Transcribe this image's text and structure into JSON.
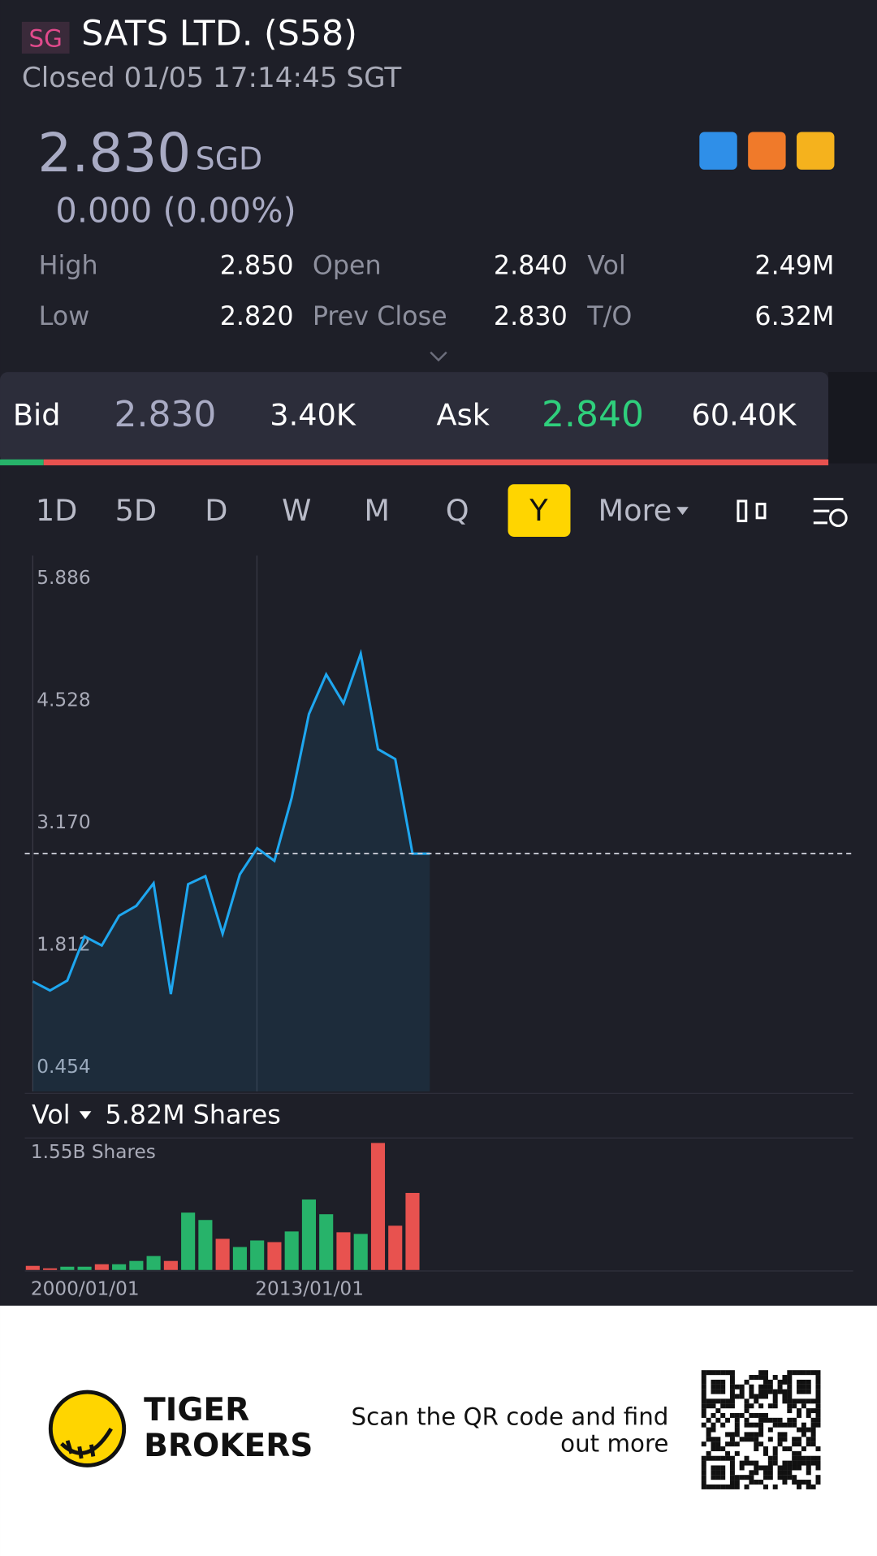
{
  "header": {
    "market": "SG",
    "title": "SATS LTD. (S58)",
    "status": "Closed 01/05 17:14:45 SGT"
  },
  "quote": {
    "price": "2.830",
    "currency": "SGD",
    "change": "0.000 (0.00%)"
  },
  "stats": [
    [
      "High",
      "2.850",
      "Open",
      "2.840",
      "Vol",
      "2.49M"
    ],
    [
      "Low",
      "2.820",
      "Prev Close",
      "2.830",
      "T/O",
      "6.32M"
    ]
  ],
  "order_book": [
    "Bid",
    "2.830",
    "3.40K",
    "Ask",
    "2.840",
    "60.40K"
  ],
  "tabs": [
    "1D",
    "5D",
    "D",
    "W",
    "M",
    "Q",
    "Y",
    "More"
  ],
  "active_tab": 6,
  "chart_data": [
    {
      "type": "line",
      "color": "#1ea7f0",
      "values": [
        1.41,
        1.31,
        1.42,
        1.91,
        1.81,
        2.14,
        2.25,
        2.5,
        1.27,
        2.49,
        2.58,
        1.94,
        2.6,
        2.89,
        2.75,
        3.45,
        4.38,
        4.82,
        4.5,
        5.05,
        3.99,
        3.88,
        2.83,
        2.83
      ],
      "ylim": [
        0.454,
        5.886
      ],
      "yticks": [
        0.454,
        1.812,
        {
          "value": 3.17,
          "label": "3.170"
        },
        4.528,
        5.886
      ],
      "reference_line": 2.83
    },
    {
      "type": "bar",
      "title": "Vol",
      "subtitle": "5.82M Shares",
      "categories": [
        "2000/01/01",
        null,
        null,
        null,
        null,
        null,
        null,
        null,
        null,
        null,
        null,
        null,
        null,
        "2013/01/01",
        null,
        null,
        null,
        null,
        null,
        null,
        null,
        null,
        null,
        null
      ],
      "values": [
        50000000,
        20000000,
        40000000,
        40000000,
        70000000,
        70000000,
        110000000,
        170000000,
        110000000,
        700000000,
        610000000,
        380000000,
        280000000,
        360000000,
        340000000,
        470000000,
        860000000,
        680000000,
        460000000,
        440000000,
        1550000000,
        540000000,
        940000000,
        null
      ],
      "colors": [
        "#e8524f",
        "#e8524f",
        "#27b36a",
        "#27b36a",
        "#e8524f",
        "#27b36a",
        "#27b36a",
        "#27b36a",
        "#e8524f",
        "#27b36a",
        "#27b36a",
        "#e8524f",
        "#27b36a",
        "#27b36a",
        "#e8524f",
        "#27b36a",
        "#27b36a",
        "#27b36a",
        "#e8524f",
        "#27b36a",
        "#e8524f",
        "#e8524f",
        "#e8524f",
        null
      ],
      "ylim": [
        0,
        1550000000
      ],
      "yticks": [
        {
          "value": 1550000000,
          "label": "1.55B Shares"
        }
      ]
    }
  ],
  "footer": {
    "brand": [
      "TIGER",
      "BROKERS"
    ],
    "cta": [
      "Scan the QR code and find",
      "out more"
    ]
  }
}
